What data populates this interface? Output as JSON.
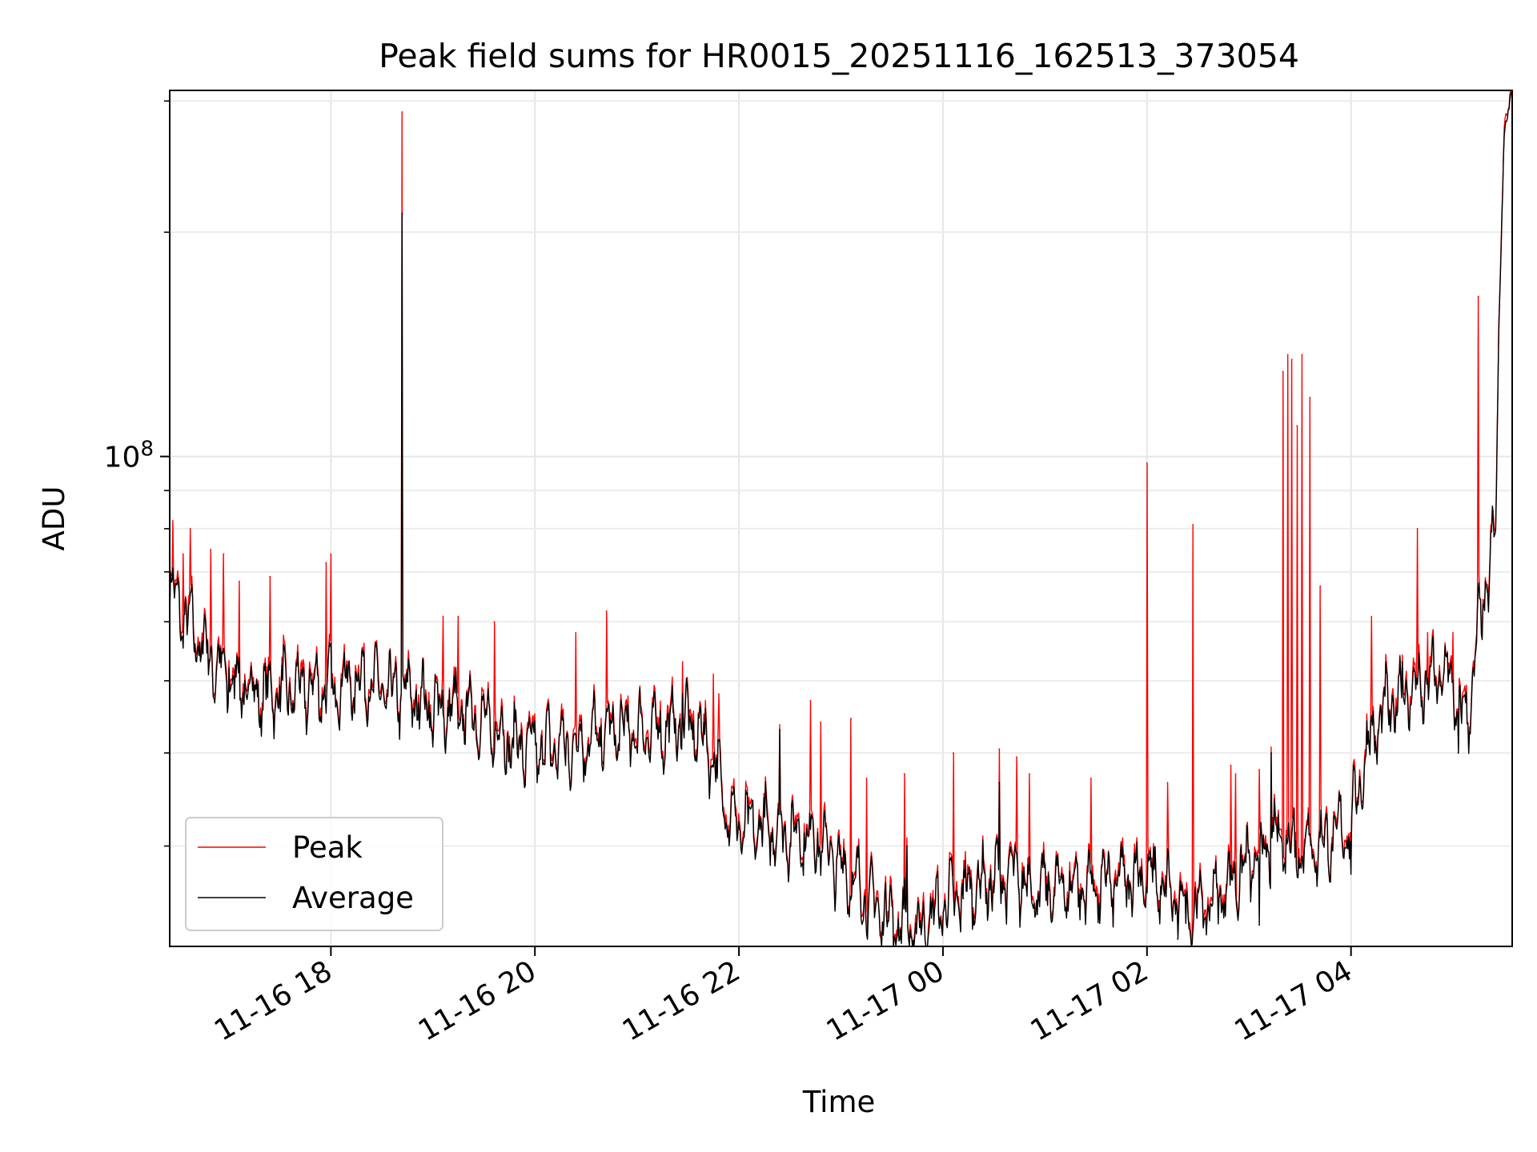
{
  "chart_data": {
    "type": "line",
    "title": "Peak field sums for HR0015_20251116_162513_373054",
    "xlabel": "Time",
    "ylabel": "ADU",
    "yscale": "log",
    "ylim": [
      22000000,
      310000000
    ],
    "xlim_hours": [
      16.42,
      29.58
    ],
    "grid": true,
    "legend": {
      "location": "lower-left",
      "entries": [
        "Peak",
        "Average"
      ]
    },
    "x_ticks": [
      {
        "hour": 18,
        "label": "11-16 18"
      },
      {
        "hour": 20,
        "label": "11-16 20"
      },
      {
        "hour": 22,
        "label": "11-16 22"
      },
      {
        "hour": 24,
        "label": "11-17 00"
      },
      {
        "hour": 26,
        "label": "11-17 02"
      },
      {
        "hour": 28,
        "label": "11-17 04"
      }
    ],
    "y_major_ticks": [
      {
        "value": 100000000,
        "base": "10",
        "exp": "8"
      }
    ],
    "y_minor_ticks": [
      30000000,
      40000000,
      50000000,
      60000000,
      70000000,
      80000000,
      90000000,
      200000000,
      300000000
    ],
    "x_unit": "hours since 2025-11-16 00:00",
    "series": [
      {
        "name": "Average",
        "color": "#000000",
        "anchors": [
          [
            16.42,
            66000000
          ],
          [
            16.6,
            60000000
          ],
          [
            16.8,
            54000000
          ],
          [
            17.0,
            50000000
          ],
          [
            17.3,
            48000000
          ],
          [
            17.6,
            48500000
          ],
          [
            18.0,
            49000000
          ],
          [
            18.3,
            50000000
          ],
          [
            18.6,
            48000000
          ],
          [
            18.7,
            48500000
          ],
          [
            19.0,
            46000000
          ],
          [
            19.4,
            45000000
          ],
          [
            19.6,
            43000000
          ],
          [
            19.8,
            41000000
          ],
          [
            20.0,
            40500000
          ],
          [
            20.4,
            41000000
          ],
          [
            20.8,
            43000000
          ],
          [
            21.0,
            42500000
          ],
          [
            21.3,
            43000000
          ],
          [
            21.5,
            44000000
          ],
          [
            21.7,
            41000000
          ],
          [
            21.8,
            37000000
          ],
          [
            21.9,
            33000000
          ],
          [
            22.0,
            32000000
          ],
          [
            22.3,
            31500000
          ],
          [
            22.6,
            31000000
          ],
          [
            22.8,
            30500000
          ],
          [
            23.0,
            28000000
          ],
          [
            23.2,
            26000000
          ],
          [
            23.4,
            24500000
          ],
          [
            23.6,
            23500000
          ],
          [
            23.75,
            23000000
          ],
          [
            24.0,
            25000000
          ],
          [
            24.2,
            26000000
          ],
          [
            24.5,
            27000000
          ],
          [
            24.7,
            27500000
          ],
          [
            24.9,
            26000000
          ],
          [
            25.2,
            26500000
          ],
          [
            25.5,
            26500000
          ],
          [
            25.8,
            27000000
          ],
          [
            26.0,
            27500000
          ],
          [
            26.2,
            26000000
          ],
          [
            26.4,
            24500000
          ],
          [
            26.6,
            25000000
          ],
          [
            26.9,
            27500000
          ],
          [
            27.1,
            29000000
          ],
          [
            27.3,
            31000000
          ],
          [
            27.5,
            30000000
          ],
          [
            27.7,
            30000000
          ],
          [
            28.0,
            32000000
          ],
          [
            28.15,
            40000000
          ],
          [
            28.3,
            45000000
          ],
          [
            28.5,
            48000000
          ],
          [
            28.7,
            49000000
          ],
          [
            28.9,
            51000000
          ],
          [
            29.0,
            50000000
          ],
          [
            29.05,
            45000000
          ],
          [
            29.15,
            45000000
          ],
          [
            29.25,
            58000000
          ],
          [
            29.35,
            70000000
          ],
          [
            29.42,
            80000000
          ],
          [
            29.45,
            150000000
          ],
          [
            29.5,
            270000000
          ],
          [
            29.58,
            310000000
          ]
        ],
        "dips": [
          [
            17.0,
            52000000
          ],
          [
            19.05,
            45000000
          ],
          [
            19.6,
            40000000
          ],
          [
            20.3,
            38500000
          ],
          [
            21.84,
            33500000
          ],
          [
            22.2,
            33000000
          ],
          [
            23.85,
            21000000
          ],
          [
            24.2,
            25500000
          ],
          [
            26.3,
            22500000
          ],
          [
            27.1,
            23500000
          ],
          [
            27.45,
            29000000
          ],
          [
            28.0,
            27500000
          ],
          [
            29.05,
            40000000
          ]
        ],
        "spikes": [
          [
            18.7,
            212000000
          ],
          [
            21.45,
            48000000
          ],
          [
            22.4,
            43000000
          ],
          [
            23.65,
            30000000
          ],
          [
            24.55,
            36500000
          ],
          [
            27.22,
            40000000
          ],
          [
            28.5,
            53000000
          ]
        ]
      },
      {
        "name": "Peak",
        "color": "#ff0000",
        "spikes": [
          [
            16.45,
            82000000
          ],
          [
            16.55,
            74000000
          ],
          [
            16.62,
            80000000
          ],
          [
            16.82,
            75000000
          ],
          [
            16.95,
            74000000
          ],
          [
            17.1,
            68000000
          ],
          [
            17.4,
            69000000
          ],
          [
            17.95,
            72000000
          ],
          [
            18.0,
            74000000
          ],
          [
            18.7,
            290000000
          ],
          [
            19.1,
            61000000
          ],
          [
            19.25,
            61000000
          ],
          [
            19.6,
            60000000
          ],
          [
            20.4,
            58000000
          ],
          [
            20.7,
            62000000
          ],
          [
            21.45,
            53000000
          ],
          [
            21.75,
            51000000
          ],
          [
            21.8,
            48000000
          ],
          [
            22.7,
            47000000
          ],
          [
            22.8,
            44000000
          ],
          [
            23.1,
            44500000
          ],
          [
            23.25,
            37000000
          ],
          [
            23.62,
            37500000
          ],
          [
            24.1,
            40000000
          ],
          [
            24.55,
            40500000
          ],
          [
            24.72,
            39500000
          ],
          [
            24.85,
            37500000
          ],
          [
            25.45,
            37000000
          ],
          [
            26.0,
            98000000
          ],
          [
            26.2,
            36500000
          ],
          [
            26.45,
            81000000
          ],
          [
            26.82,
            38500000
          ],
          [
            26.87,
            37500000
          ],
          [
            27.1,
            38000000
          ],
          [
            27.33,
            130000000
          ],
          [
            27.38,
            137000000
          ],
          [
            27.42,
            135000000
          ],
          [
            27.47,
            110000000
          ],
          [
            27.52,
            137000000
          ],
          [
            27.6,
            120000000
          ],
          [
            27.7,
            67000000
          ],
          [
            28.2,
            61000000
          ],
          [
            28.65,
            80000000
          ],
          [
            28.75,
            58000000
          ],
          [
            29.0,
            58000000
          ],
          [
            29.25,
            164000000
          ]
        ]
      }
    ]
  }
}
